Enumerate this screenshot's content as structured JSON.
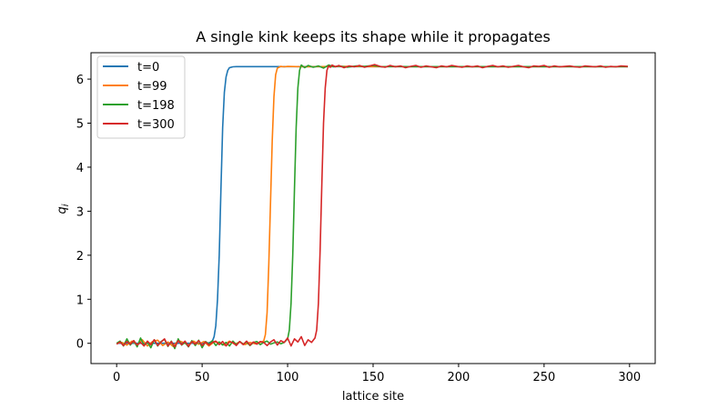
{
  "chart_data": {
    "type": "line",
    "title": "A single kink keeps its shape while it propagates",
    "xlabel": "lattice site",
    "ylabel": "q",
    "ylabel_subscript": "i",
    "xlim": [
      -15,
      315
    ],
    "ylim": [
      -0.46,
      6.6
    ],
    "xticks": [
      0,
      50,
      100,
      150,
      200,
      250,
      300
    ],
    "yticks": [
      0,
      1,
      2,
      3,
      4,
      5,
      6
    ],
    "grid": false,
    "legend_position": "top-left",
    "plateau": 6.283,
    "series": [
      {
        "name": "t=0",
        "color": "#1f77b4",
        "x": [
          0,
          5,
          10,
          15,
          20,
          25,
          30,
          35,
          40,
          45,
          50,
          54,
          56,
          57,
          58,
          59,
          60,
          61,
          62,
          63,
          64,
          65,
          66,
          68,
          70,
          80,
          100,
          150,
          200,
          250,
          299
        ],
        "y": [
          0,
          0,
          0,
          0,
          0,
          0,
          0,
          0,
          0,
          0,
          0,
          0.01,
          0.05,
          0.15,
          0.4,
          1.0,
          2.0,
          3.5,
          4.9,
          5.7,
          6.05,
          6.2,
          6.26,
          6.28,
          6.283,
          6.283,
          6.283,
          6.283,
          6.283,
          6.283,
          6.283
        ]
      },
      {
        "name": "t=99",
        "color": "#ff7f0e",
        "x": [
          0,
          3,
          6,
          9,
          12,
          15,
          18,
          21,
          24,
          27,
          30,
          33,
          36,
          39,
          42,
          45,
          48,
          51,
          54,
          57,
          60,
          63,
          66,
          69,
          72,
          75,
          78,
          81,
          84,
          86,
          87,
          88,
          89,
          90,
          91,
          92,
          93,
          94,
          96,
          98,
          100,
          110,
          130,
          150,
          200,
          250,
          299
        ],
        "y": [
          0,
          0.02,
          -0.04,
          0.05,
          -0.03,
          0.08,
          -0.06,
          0.04,
          0.07,
          -0.05,
          0.03,
          -0.07,
          0.06,
          0.02,
          -0.04,
          0.05,
          -0.02,
          0.04,
          -0.06,
          0.03,
          0.02,
          -0.04,
          0.05,
          -0.02,
          0.03,
          -0.03,
          0.02,
          -0.01,
          0.02,
          0.05,
          0.2,
          0.7,
          1.8,
          3.2,
          4.6,
          5.6,
          6.1,
          6.25,
          6.29,
          6.28,
          6.29,
          6.28,
          6.29,
          6.283,
          6.283,
          6.283,
          6.283
        ]
      },
      {
        "name": "t=198",
        "color": "#2ca02c",
        "x": [
          0,
          2,
          4,
          6,
          8,
          10,
          12,
          14,
          16,
          18,
          20,
          22,
          24,
          26,
          28,
          30,
          32,
          34,
          36,
          38,
          40,
          42,
          44,
          46,
          48,
          50,
          52,
          54,
          56,
          58,
          60,
          62,
          64,
          66,
          68,
          70,
          72,
          74,
          76,
          78,
          80,
          82,
          84,
          86,
          88,
          90,
          92,
          94,
          96,
          98,
          100,
          101,
          102,
          103,
          104,
          105,
          106,
          107,
          108,
          110,
          112,
          115,
          118,
          121,
          124,
          127,
          130,
          135,
          140,
          145,
          150,
          155,
          160,
          170,
          180,
          190,
          200,
          220,
          240,
          260,
          280,
          299
        ],
        "y": [
          0,
          0.05,
          -0.06,
          0.1,
          -0.04,
          0.06,
          -0.08,
          0.12,
          -0.05,
          0.03,
          -0.1,
          0.08,
          -0.06,
          0.04,
          0.09,
          -0.07,
          0.05,
          -0.12,
          0.1,
          -0.04,
          0.02,
          -0.08,
          0.06,
          -0.05,
          0.07,
          -0.1,
          0.04,
          -0.02,
          0.06,
          -0.05,
          0.03,
          -0.04,
          0.02,
          -0.06,
          0.05,
          -0.03,
          0.04,
          -0.02,
          0.03,
          -0.05,
          0.02,
          0.04,
          -0.03,
          0.02,
          0.05,
          -0.02,
          0.01,
          0.03,
          -0.01,
          0.02,
          0.1,
          0.3,
          0.9,
          2.0,
          3.5,
          4.9,
          5.8,
          6.2,
          6.32,
          6.26,
          6.31,
          6.27,
          6.3,
          6.25,
          6.32,
          6.28,
          6.3,
          6.27,
          6.3,
          6.29,
          6.31,
          6.28,
          6.29,
          6.283,
          6.283,
          6.283,
          6.283,
          6.283,
          6.283,
          6.283,
          6.283,
          6.283
        ]
      },
      {
        "name": "t=300",
        "color": "#d62728",
        "x": [
          0,
          2,
          4,
          6,
          8,
          10,
          12,
          14,
          16,
          18,
          20,
          22,
          24,
          26,
          28,
          30,
          32,
          34,
          36,
          38,
          40,
          42,
          44,
          46,
          48,
          50,
          52,
          54,
          56,
          58,
          60,
          62,
          64,
          66,
          68,
          70,
          72,
          74,
          76,
          78,
          80,
          82,
          84,
          86,
          88,
          90,
          92,
          94,
          96,
          98,
          100,
          102,
          104,
          106,
          108,
          110,
          112,
          114,
          116,
          117,
          118,
          119,
          120,
          121,
          122,
          123,
          124,
          125,
          126,
          128,
          130,
          133,
          136,
          139,
          142,
          145,
          148,
          151,
          154,
          157,
          160,
          163,
          166,
          169,
          172,
          175,
          178,
          181,
          184,
          187,
          190,
          193,
          196,
          199,
          202,
          205,
          208,
          211,
          214,
          217,
          220,
          223,
          226,
          229,
          232,
          235,
          238,
          241,
          244,
          247,
          250,
          253,
          256,
          259,
          262,
          265,
          268,
          271,
          274,
          277,
          280,
          283,
          286,
          289,
          292,
          295,
          299
        ],
        "y": [
          -0.02,
          0.03,
          -0.05,
          0.04,
          -0.02,
          0.06,
          -0.04,
          0.02,
          -0.06,
          0.05,
          -0.03,
          0.08,
          -0.05,
          0.03,
          0.1,
          -0.06,
          0.04,
          -0.08,
          0.06,
          -0.03,
          0.05,
          -0.07,
          0.04,
          -0.02,
          0.06,
          -0.05,
          0.03,
          -0.04,
          0.02,
          0.05,
          -0.03,
          0.04,
          -0.06,
          0.03,
          0.02,
          -0.05,
          0.04,
          -0.03,
          0.05,
          -0.04,
          0.03,
          -0.02,
          0.04,
          0.02,
          -0.05,
          0.03,
          0.08,
          -0.04,
          0.06,
          0.02,
          0.12,
          -0.06,
          0.1,
          0.03,
          0.15,
          -0.05,
          0.08,
          0.02,
          0.12,
          0.3,
          0.9,
          2.1,
          3.6,
          5.0,
          5.8,
          6.2,
          6.3,
          6.27,
          6.32,
          6.28,
          6.31,
          6.26,
          6.3,
          6.28,
          6.31,
          6.27,
          6.3,
          6.33,
          6.29,
          6.27,
          6.31,
          6.28,
          6.3,
          6.26,
          6.29,
          6.31,
          6.27,
          6.3,
          6.28,
          6.26,
          6.3,
          6.28,
          6.31,
          6.29,
          6.27,
          6.3,
          6.28,
          6.3,
          6.26,
          6.29,
          6.31,
          6.28,
          6.3,
          6.27,
          6.29,
          6.31,
          6.28,
          6.26,
          6.3,
          6.29,
          6.31,
          6.27,
          6.3,
          6.28,
          6.29,
          6.3,
          6.28,
          6.27,
          6.3,
          6.29,
          6.28,
          6.3,
          6.27,
          6.29,
          6.28,
          6.3,
          6.29
        ]
      }
    ]
  }
}
